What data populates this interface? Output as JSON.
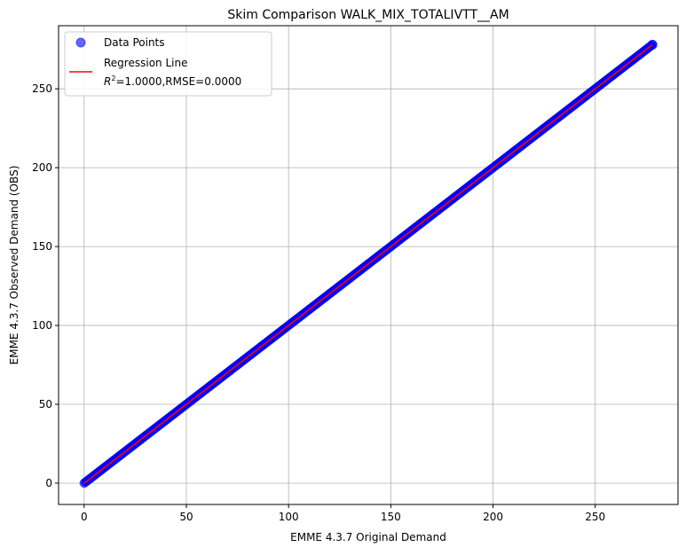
{
  "chart_data": {
    "type": "scatter",
    "title": "Skim Comparison WALK_MIX_TOTALIVTT__AM",
    "xlabel": "EMME 4.3.7 Original Demand",
    "ylabel": "EMME 4.3.7 Observed Demand (OBS)",
    "xlim": [
      -12.5,
      290.5
    ],
    "ylim": [
      -13.5,
      290
    ],
    "xticks": [
      0,
      50,
      100,
      150,
      200,
      250
    ],
    "yticks": [
      0,
      50,
      100,
      150,
      200,
      250
    ],
    "grid": true,
    "legend_position": "top-left",
    "series": [
      {
        "name": "Data Points",
        "kind": "scatter",
        "color": "#0000ff",
        "opacity": 0.6,
        "x_range": [
          0,
          278
        ],
        "y_range": [
          0,
          278
        ]
      },
      {
        "name": "Regression Line",
        "kind": "line",
        "color": "#ff0000",
        "x": [
          0,
          278
        ],
        "y": [
          0,
          278
        ]
      }
    ],
    "legend": {
      "scatter_label": "Data Points",
      "line_label": "Regression Line",
      "stats_prefix": "R",
      "stats_sup": "2",
      "stats_rest": "=1.0000,RMSE=0.0000"
    }
  }
}
